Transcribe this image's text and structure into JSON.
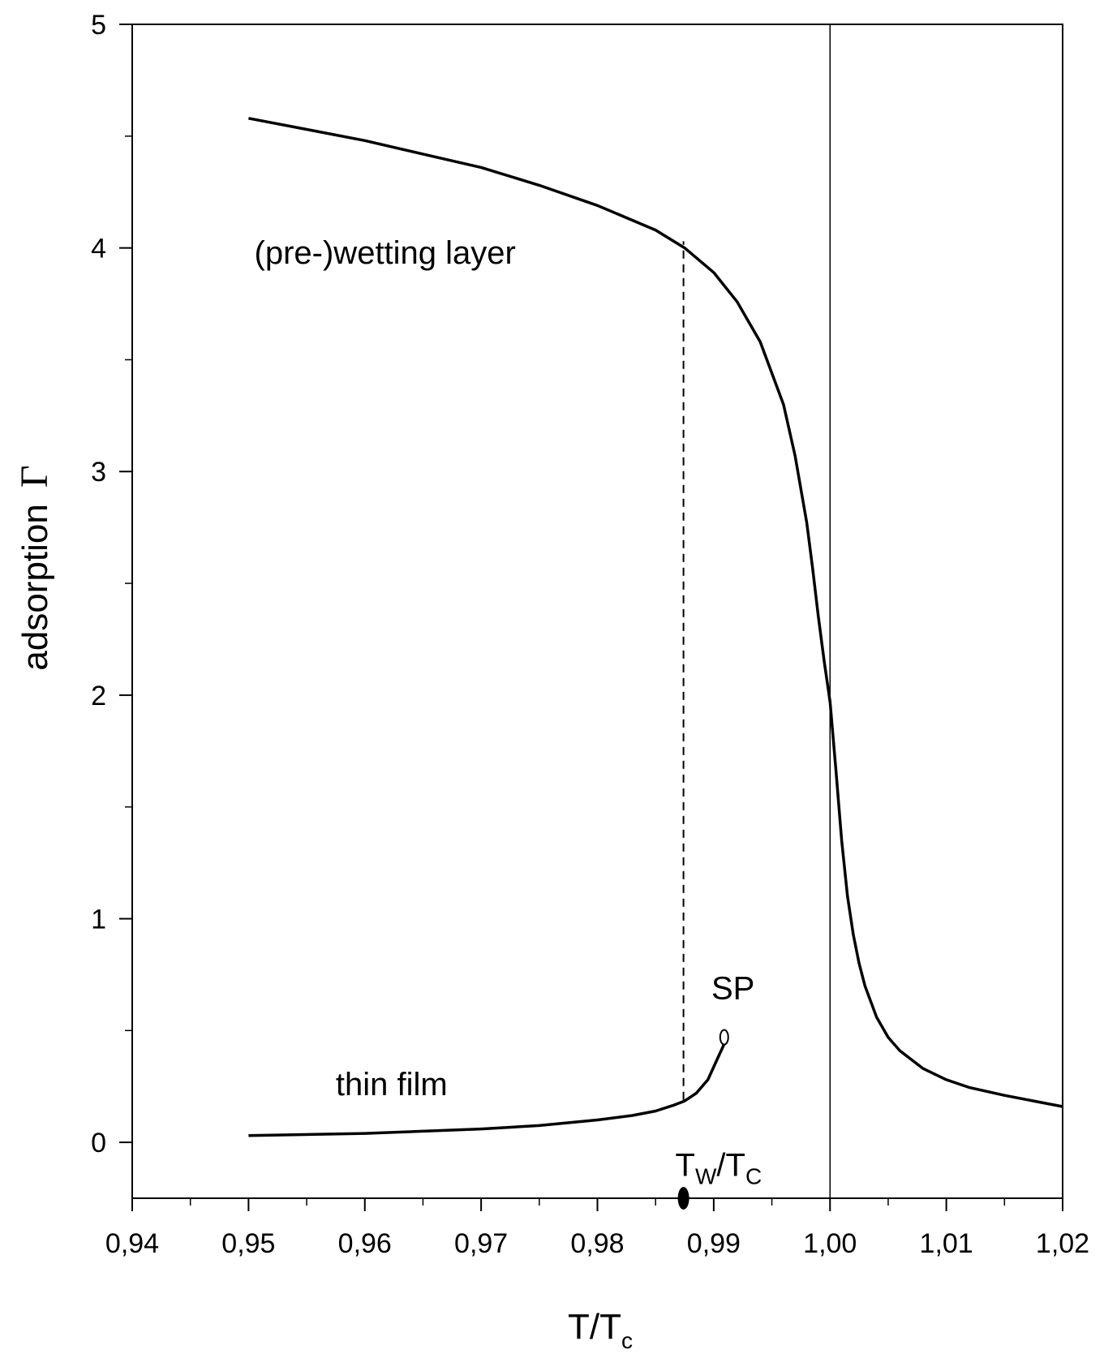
{
  "chart_data": {
    "type": "line",
    "xlabel": {
      "main": "T/T",
      "sub": "c"
    },
    "ylabel": {
      "main": "adsorption",
      "symbol": "Γ"
    },
    "xlim": [
      0.94,
      1.02
    ],
    "ylim": [
      -0.25,
      5
    ],
    "x_ticks": [
      {
        "v": 0.94,
        "label": "0,94"
      },
      {
        "v": 0.95,
        "label": "0,95"
      },
      {
        "v": 0.96,
        "label": "0,96"
      },
      {
        "v": 0.97,
        "label": "0,97"
      },
      {
        "v": 0.98,
        "label": "0,98"
      },
      {
        "v": 0.99,
        "label": "0,99"
      },
      {
        "v": 1.0,
        "label": "1,00"
      },
      {
        "v": 1.01,
        "label": "1,01"
      },
      {
        "v": 1.02,
        "label": "1,02"
      }
    ],
    "y_ticks": [
      {
        "v": 0,
        "label": "0"
      },
      {
        "v": 1,
        "label": "1"
      },
      {
        "v": 2,
        "label": "2"
      },
      {
        "v": 3,
        "label": "3"
      },
      {
        "v": 4,
        "label": "4"
      },
      {
        "v": 5,
        "label": "5"
      }
    ],
    "series": [
      {
        "key": "prewetting",
        "x": [
          0.95,
          0.955,
          0.96,
          0.965,
          0.97,
          0.975,
          0.98,
          0.985,
          0.9875,
          0.99,
          0.992,
          0.994,
          0.996,
          0.997,
          0.998,
          0.9985,
          0.999,
          0.9995,
          1.0,
          1.0005,
          1.001,
          1.0015,
          1.002,
          1.0025,
          1.003,
          1.004,
          1.005,
          1.006,
          1.008,
          1.01,
          1.012,
          1.015,
          1.018,
          1.02
        ],
        "y": [
          4.58,
          4.53,
          4.48,
          4.42,
          4.36,
          4.28,
          4.19,
          4.08,
          4.0,
          3.89,
          3.76,
          3.58,
          3.3,
          3.07,
          2.77,
          2.57,
          2.35,
          2.15,
          1.97,
          1.67,
          1.35,
          1.1,
          0.93,
          0.8,
          0.7,
          0.56,
          0.47,
          0.41,
          0.33,
          0.28,
          0.245,
          0.21,
          0.18,
          0.16
        ]
      },
      {
        "key": "thin_film",
        "x": [
          0.95,
          0.96,
          0.97,
          0.975,
          0.98,
          0.983,
          0.985,
          0.9865,
          0.9875,
          0.9885,
          0.9895,
          0.9902,
          0.9909
        ],
        "y": [
          0.03,
          0.04,
          0.06,
          0.075,
          0.1,
          0.12,
          0.14,
          0.165,
          0.185,
          0.22,
          0.28,
          0.36,
          0.44
        ]
      }
    ],
    "vline_solid_x": 1.0,
    "vline_dashed": {
      "x": 0.9874,
      "y_from": 0.19,
      "y_to": 4.03
    },
    "marker_filled": {
      "x": 0.9874,
      "y": -0.25
    },
    "marker_open": {
      "x": 0.9909,
      "y": 0.47
    },
    "annotations": {
      "prewetting_layer": {
        "text": "(pre-)wetting layer",
        "x": 0.9505,
        "y": 3.93
      },
      "thin_film": {
        "text": "thin film",
        "x": 0.9575,
        "y": 0.21
      },
      "sp": {
        "text": "SP",
        "x": 0.9898,
        "y": 0.64
      },
      "tw_tc": {
        "main1": "T",
        "sub1": "W",
        "mid": "/T",
        "sub2": "C",
        "x": 0.9867,
        "y": -0.15
      }
    }
  }
}
